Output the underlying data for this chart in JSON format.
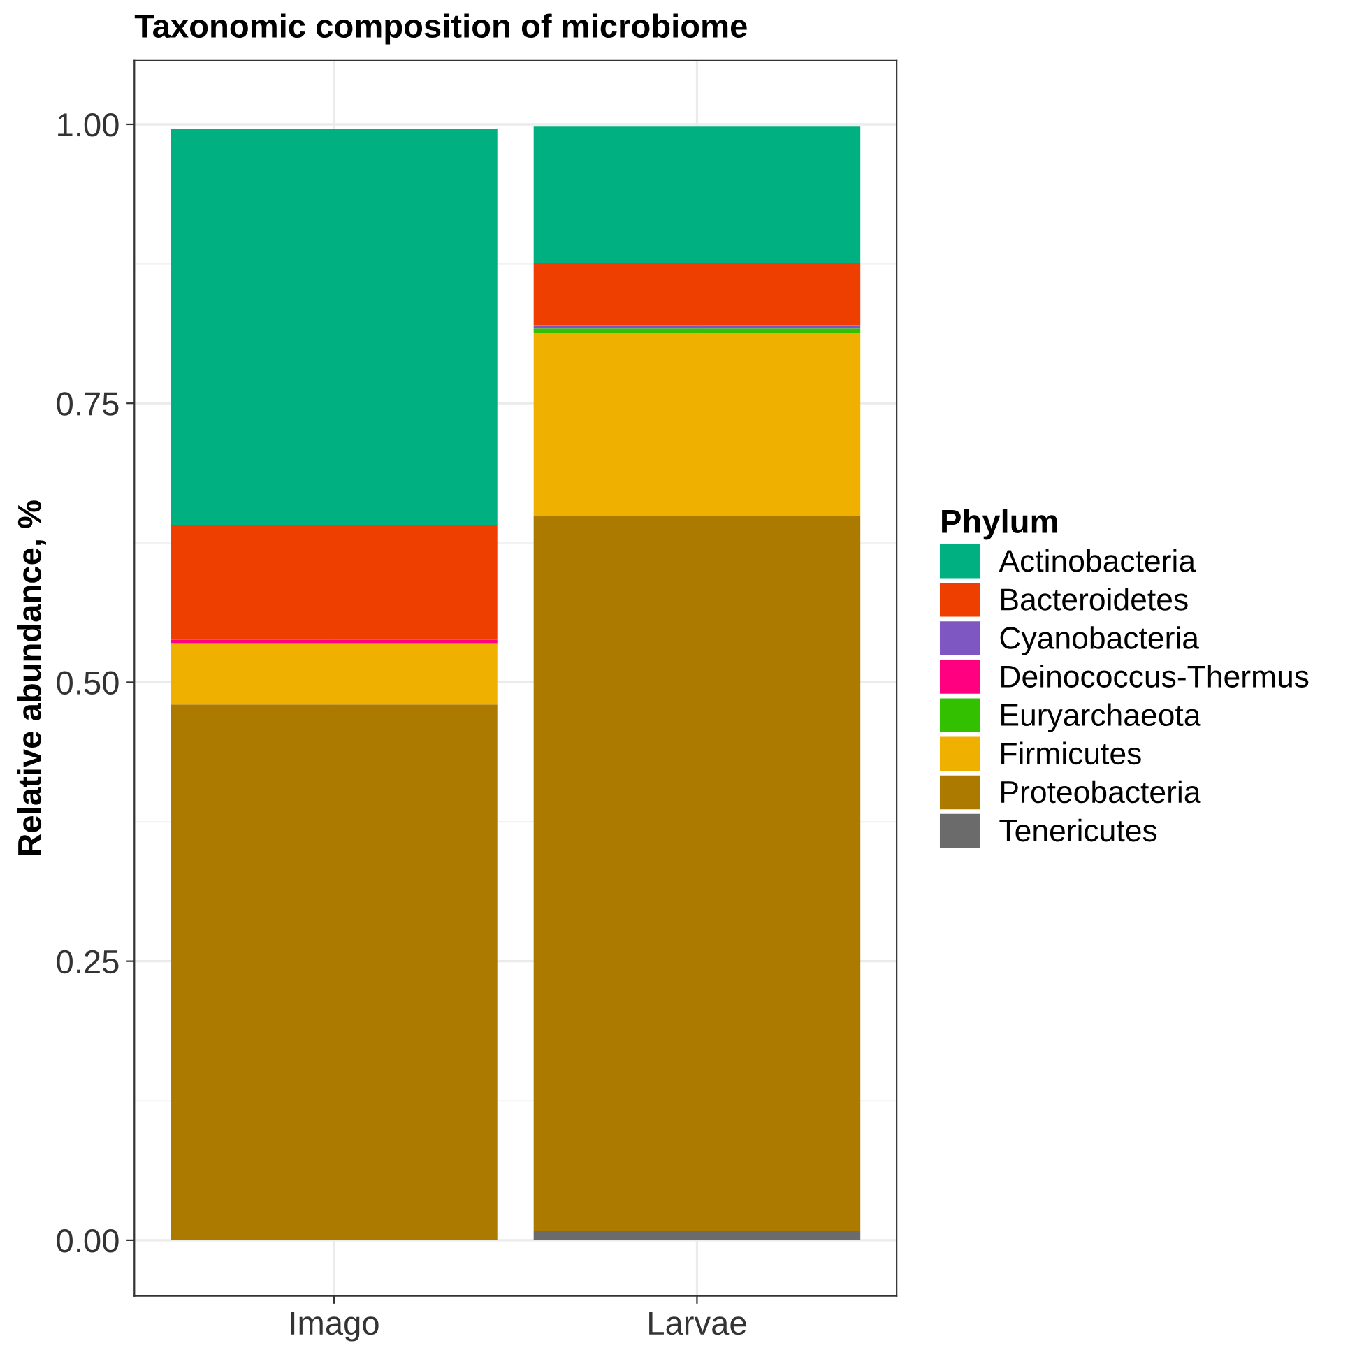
{
  "chart_data": {
    "type": "bar",
    "title": "Taxonomic composition of microbiome",
    "ylabel": "Relative abundance, %",
    "legend_title": "Phylum",
    "categories": [
      "Imago",
      "Larvae"
    ],
    "stacked": true,
    "legend": "right",
    "grid": true,
    "ylim": [
      -0.05,
      1.057
    ],
    "yticks": [
      {
        "value": 0,
        "label": "0.00"
      },
      {
        "value": 0.25,
        "label": "0.25"
      },
      {
        "value": 0.5,
        "label": "0.50"
      },
      {
        "value": 0.75,
        "label": "0.75"
      },
      {
        "value": 1,
        "label": "1.00"
      }
    ],
    "series": [
      {
        "name": "Tenericutes",
        "color": "#6b6b6b",
        "values": [
          0,
          0.008
        ]
      },
      {
        "name": "Proteobacteria",
        "color": "#ad7a00",
        "values": [
          0.48,
          0.641
        ]
      },
      {
        "name": "Firmicutes",
        "color": "#f0b000",
        "values": [
          0.055,
          0.164
        ]
      },
      {
        "name": "Euryarchaeota",
        "color": "#33c000",
        "values": [
          0,
          0.004
        ]
      },
      {
        "name": "Deinococcus-Thermus",
        "color": "#ff0080",
        "values": [
          0.003,
          0
        ]
      },
      {
        "name": "Cyanobacteria",
        "color": "#7e57c2",
        "values": [
          0,
          0.003
        ]
      },
      {
        "name": "Bacteroidetes",
        "color": "#ef3f00",
        "values": [
          0.103,
          0.056
        ]
      },
      {
        "name": "Actinobacteria",
        "color": "#00b080",
        "values": [
          0.355,
          0.122
        ]
      }
    ]
  }
}
